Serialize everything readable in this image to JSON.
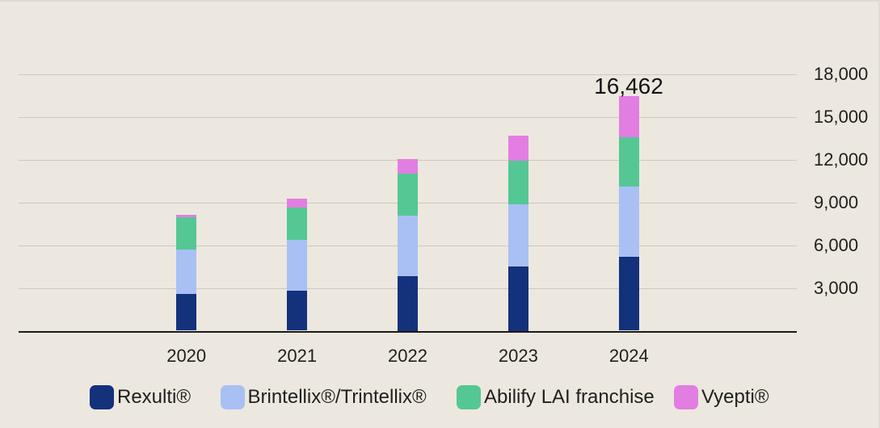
{
  "page": {
    "background_color": "#ECE8DF",
    "gridline_color": "#CDC8C1",
    "axis_color": "#1A1A1A",
    "text_color": "#1F1F1F"
  },
  "chart_data": {
    "type": "bar",
    "variant": "stacked",
    "title": "",
    "xlabel": "",
    "ylabel": "",
    "categories": [
      "2020",
      "2021",
      "2022",
      "2023",
      "2024"
    ],
    "series": [
      {
        "id": "rexulti",
        "name": "Rexulti®",
        "color": "#14317C",
        "values": [
          2570,
          2800,
          3850,
          4500,
          5164
        ]
      },
      {
        "id": "brintellix-trintellix",
        "name": "Brintellix®/Trintellix®",
        "color": "#A9C0F4",
        "values": [
          3110,
          3600,
          4220,
          4360,
          4948
        ]
      },
      {
        "id": "abilify-lai-franchise",
        "name": "Abilify LAI franchise",
        "color": "#55C794",
        "values": [
          2290,
          2230,
          2970,
          3100,
          3445
        ]
      },
      {
        "id": "vyepti",
        "name": "Vyepti®",
        "color": "#E27EE2",
        "values": [
          150,
          650,
          1030,
          1750,
          2905
        ]
      }
    ],
    "annotation": {
      "category": "2024",
      "text": "16,462",
      "value": 16462
    },
    "y_ticks": [
      3000,
      6000,
      9000,
      12000,
      15000,
      18000
    ],
    "y_tick_labels": [
      "3,000",
      "6,000",
      "9,000",
      "12,000",
      "15,000",
      "18,000"
    ],
    "ylim": [
      0,
      18000
    ],
    "y_axis_side": "right",
    "grid": "horizontal",
    "legend_position": "bottom"
  }
}
